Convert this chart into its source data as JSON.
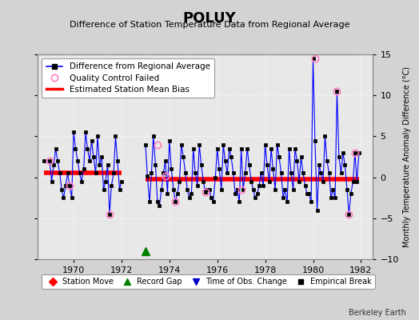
{
  "title": "POLUY",
  "subtitle": "Difference of Station Temperature Data from Regional Average",
  "ylabel_right": "Monthly Temperature Anomaly Difference (°C)",
  "credit": "Berkeley Earth",
  "xlim": [
    1968.5,
    1982.5
  ],
  "ylim": [
    -10,
    15
  ],
  "yticks": [
    -10,
    -5,
    0,
    5,
    10,
    15
  ],
  "xticks": [
    1970,
    1972,
    1974,
    1976,
    1978,
    1980,
    1982
  ],
  "bg_color": "#d3d3d3",
  "plot_bg_color": "#e8e8e8",
  "grid_color": "#ffffff",
  "line_color": "#0000ff",
  "marker_color": "black",
  "bias_line1_x": [
    1968.75,
    1972.0
  ],
  "bias_line1_y": [
    0.5,
    0.5
  ],
  "bias_line2_x": [
    1973.0,
    1981.92
  ],
  "bias_line2_y": [
    -0.2,
    -0.2
  ],
  "record_gap_x": 1973.0,
  "record_gap_y": -9.0,
  "qc_failed_points": [
    [
      1969.0,
      2.0
    ],
    [
      1969.83,
      -1.0
    ],
    [
      1971.5,
      -4.5
    ],
    [
      1973.5,
      4.0
    ],
    [
      1973.83,
      0.2
    ],
    [
      1974.25,
      -3.0
    ],
    [
      1975.5,
      -1.8
    ],
    [
      1977.0,
      -1.5
    ],
    [
      1980.08,
      14.5
    ],
    [
      1981.0,
      10.5
    ],
    [
      1981.5,
      -4.5
    ],
    [
      1981.75,
      3.0
    ]
  ],
  "time_series_x": [
    1968.75,
    1969.0,
    1969.08,
    1969.17,
    1969.25,
    1969.33,
    1969.42,
    1969.5,
    1969.58,
    1969.67,
    1969.75,
    1969.83,
    1969.92,
    1970.0,
    1970.08,
    1970.17,
    1970.25,
    1970.33,
    1970.42,
    1970.5,
    1970.58,
    1970.67,
    1970.75,
    1970.83,
    1970.92,
    1971.0,
    1971.08,
    1971.17,
    1971.25,
    1971.33,
    1971.42,
    1971.5,
    1971.58,
    1971.67,
    1971.75,
    1971.83,
    1971.92,
    1972.0,
    1972.08,
    1972.17,
    1972.25,
    1972.33,
    1972.42,
    1972.5,
    1972.58,
    1972.67,
    1972.75,
    1972.83,
    1972.92,
    1973.0,
    1973.08,
    1973.17,
    1973.25,
    1973.33,
    1973.42,
    1973.5,
    1973.58,
    1973.67,
    1973.75,
    1973.83,
    1973.92,
    1974.0,
    1974.08,
    1974.17,
    1974.25,
    1974.33,
    1974.42,
    1974.5,
    1974.58,
    1974.67,
    1974.75,
    1974.83,
    1974.92,
    1975.0,
    1975.08,
    1975.17,
    1975.25,
    1975.33,
    1975.42,
    1975.5,
    1975.58,
    1975.67,
    1975.75,
    1975.83,
    1975.92,
    1976.0,
    1976.08,
    1976.17,
    1976.25,
    1976.33,
    1976.42,
    1976.5,
    1976.58,
    1976.67,
    1976.75,
    1976.83,
    1976.92,
    1977.0,
    1977.08,
    1977.17,
    1977.25,
    1977.33,
    1977.42,
    1977.5,
    1977.58,
    1977.67,
    1977.75,
    1977.83,
    1977.92,
    1978.0,
    1978.08,
    1978.17,
    1978.25,
    1978.33,
    1978.42,
    1978.5,
    1978.58,
    1978.67,
    1978.75,
    1978.83,
    1978.92,
    1979.0,
    1979.08,
    1979.17,
    1979.25,
    1979.33,
    1979.42,
    1979.5,
    1979.58,
    1979.67,
    1979.75,
    1979.83,
    1979.92,
    1980.0,
    1980.08,
    1980.17,
    1980.25,
    1980.33,
    1980.42,
    1980.5,
    1980.58,
    1980.67,
    1980.75,
    1980.83,
    1980.92,
    1981.0,
    1981.08,
    1981.17,
    1981.25,
    1981.33,
    1981.42,
    1981.5,
    1981.58,
    1981.67,
    1981.75,
    1981.83,
    1981.92
  ],
  "time_series_y": [
    2.0,
    2.0,
    -0.5,
    1.5,
    3.5,
    2.0,
    0.5,
    -1.5,
    -2.5,
    -1.0,
    0.5,
    -1.0,
    -2.5,
    5.5,
    3.5,
    2.0,
    0.5,
    -0.5,
    1.0,
    5.5,
    3.5,
    2.0,
    4.5,
    2.5,
    0.5,
    5.0,
    1.5,
    2.5,
    -1.5,
    -0.5,
    1.5,
    -4.5,
    -1.0,
    0.5,
    5.0,
    2.0,
    -1.5,
    -0.5,
    1.0,
    0.5,
    -1.0,
    0.5,
    2.0,
    4.0,
    1.5,
    -0.5,
    -1.0,
    -1.5,
    -2.0,
    4.0,
    0.2,
    -3.0,
    0.5,
    5.0,
    1.5,
    -3.0,
    -3.5,
    -1.5,
    0.5,
    2.0,
    -2.0,
    4.5,
    1.0,
    -1.5,
    -3.0,
    -2.0,
    -0.5,
    4.0,
    2.5,
    0.5,
    -1.5,
    -2.5,
    -2.0,
    3.5,
    0.5,
    -1.0,
    4.0,
    1.5,
    -0.5,
    -1.8,
    -1.5,
    -1.5,
    -2.5,
    -3.0,
    0.0,
    3.5,
    1.0,
    -1.5,
    4.0,
    2.0,
    0.5,
    3.5,
    2.5,
    0.5,
    -2.0,
    -1.5,
    -3.0,
    3.5,
    -1.5,
    0.5,
    3.5,
    1.5,
    -0.5,
    -1.5,
    -2.5,
    -2.0,
    -1.0,
    0.5,
    -1.0,
    4.0,
    1.5,
    -0.5,
    3.5,
    1.0,
    -1.5,
    4.0,
    2.5,
    0.5,
    -2.5,
    -1.5,
    -3.0,
    3.5,
    0.5,
    -1.5,
    3.5,
    2.0,
    -0.5,
    2.5,
    0.5,
    -1.0,
    -2.0,
    -2.0,
    -3.0,
    14.5,
    4.5,
    -4.0,
    1.5,
    0.5,
    -0.5,
    5.0,
    2.0,
    0.5,
    -2.5,
    -1.5,
    -2.5,
    10.5,
    2.5,
    0.5,
    3.0,
    1.5,
    -1.5,
    -4.5,
    -2.0,
    -0.5,
    3.0,
    -0.5,
    3.0
  ],
  "gap_x_start": 1972.0,
  "gap_x_end": 1973.0
}
